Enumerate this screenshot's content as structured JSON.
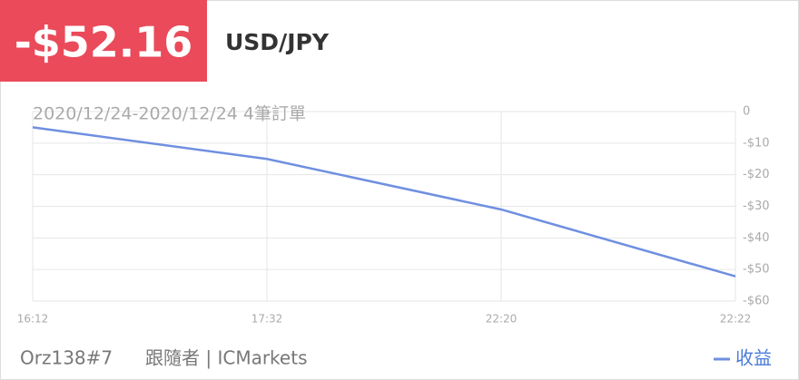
{
  "header": {
    "amount": "-$52.16",
    "symbol": "USD/JPY"
  },
  "chart_data": {
    "type": "line",
    "subtitle": "2020/12/24-2020/12/24 4筆訂單",
    "categories": [
      "16:12",
      "17:32",
      "22:20",
      "22:22"
    ],
    "series": [
      {
        "name": "收益",
        "color": "#6f8fe0",
        "values": [
          -5,
          -15,
          -31,
          -52.16
        ]
      }
    ],
    "ylim": [
      0,
      -60
    ],
    "yticks": [
      0,
      {
        "value": -10,
        "label": "-$10"
      },
      {
        "value": -20,
        "label": "-$20"
      },
      {
        "value": -30,
        "label": "-$30"
      },
      {
        "value": -40,
        "label": "-$40"
      },
      {
        "value": -50,
        "label": "-$50"
      },
      {
        "value": -60,
        "label": "-$60"
      }
    ],
    "grid": true,
    "legend": "bottom-right"
  },
  "footer": {
    "account": "Orz138#7",
    "role": "跟隨者 | ICMarkets"
  }
}
